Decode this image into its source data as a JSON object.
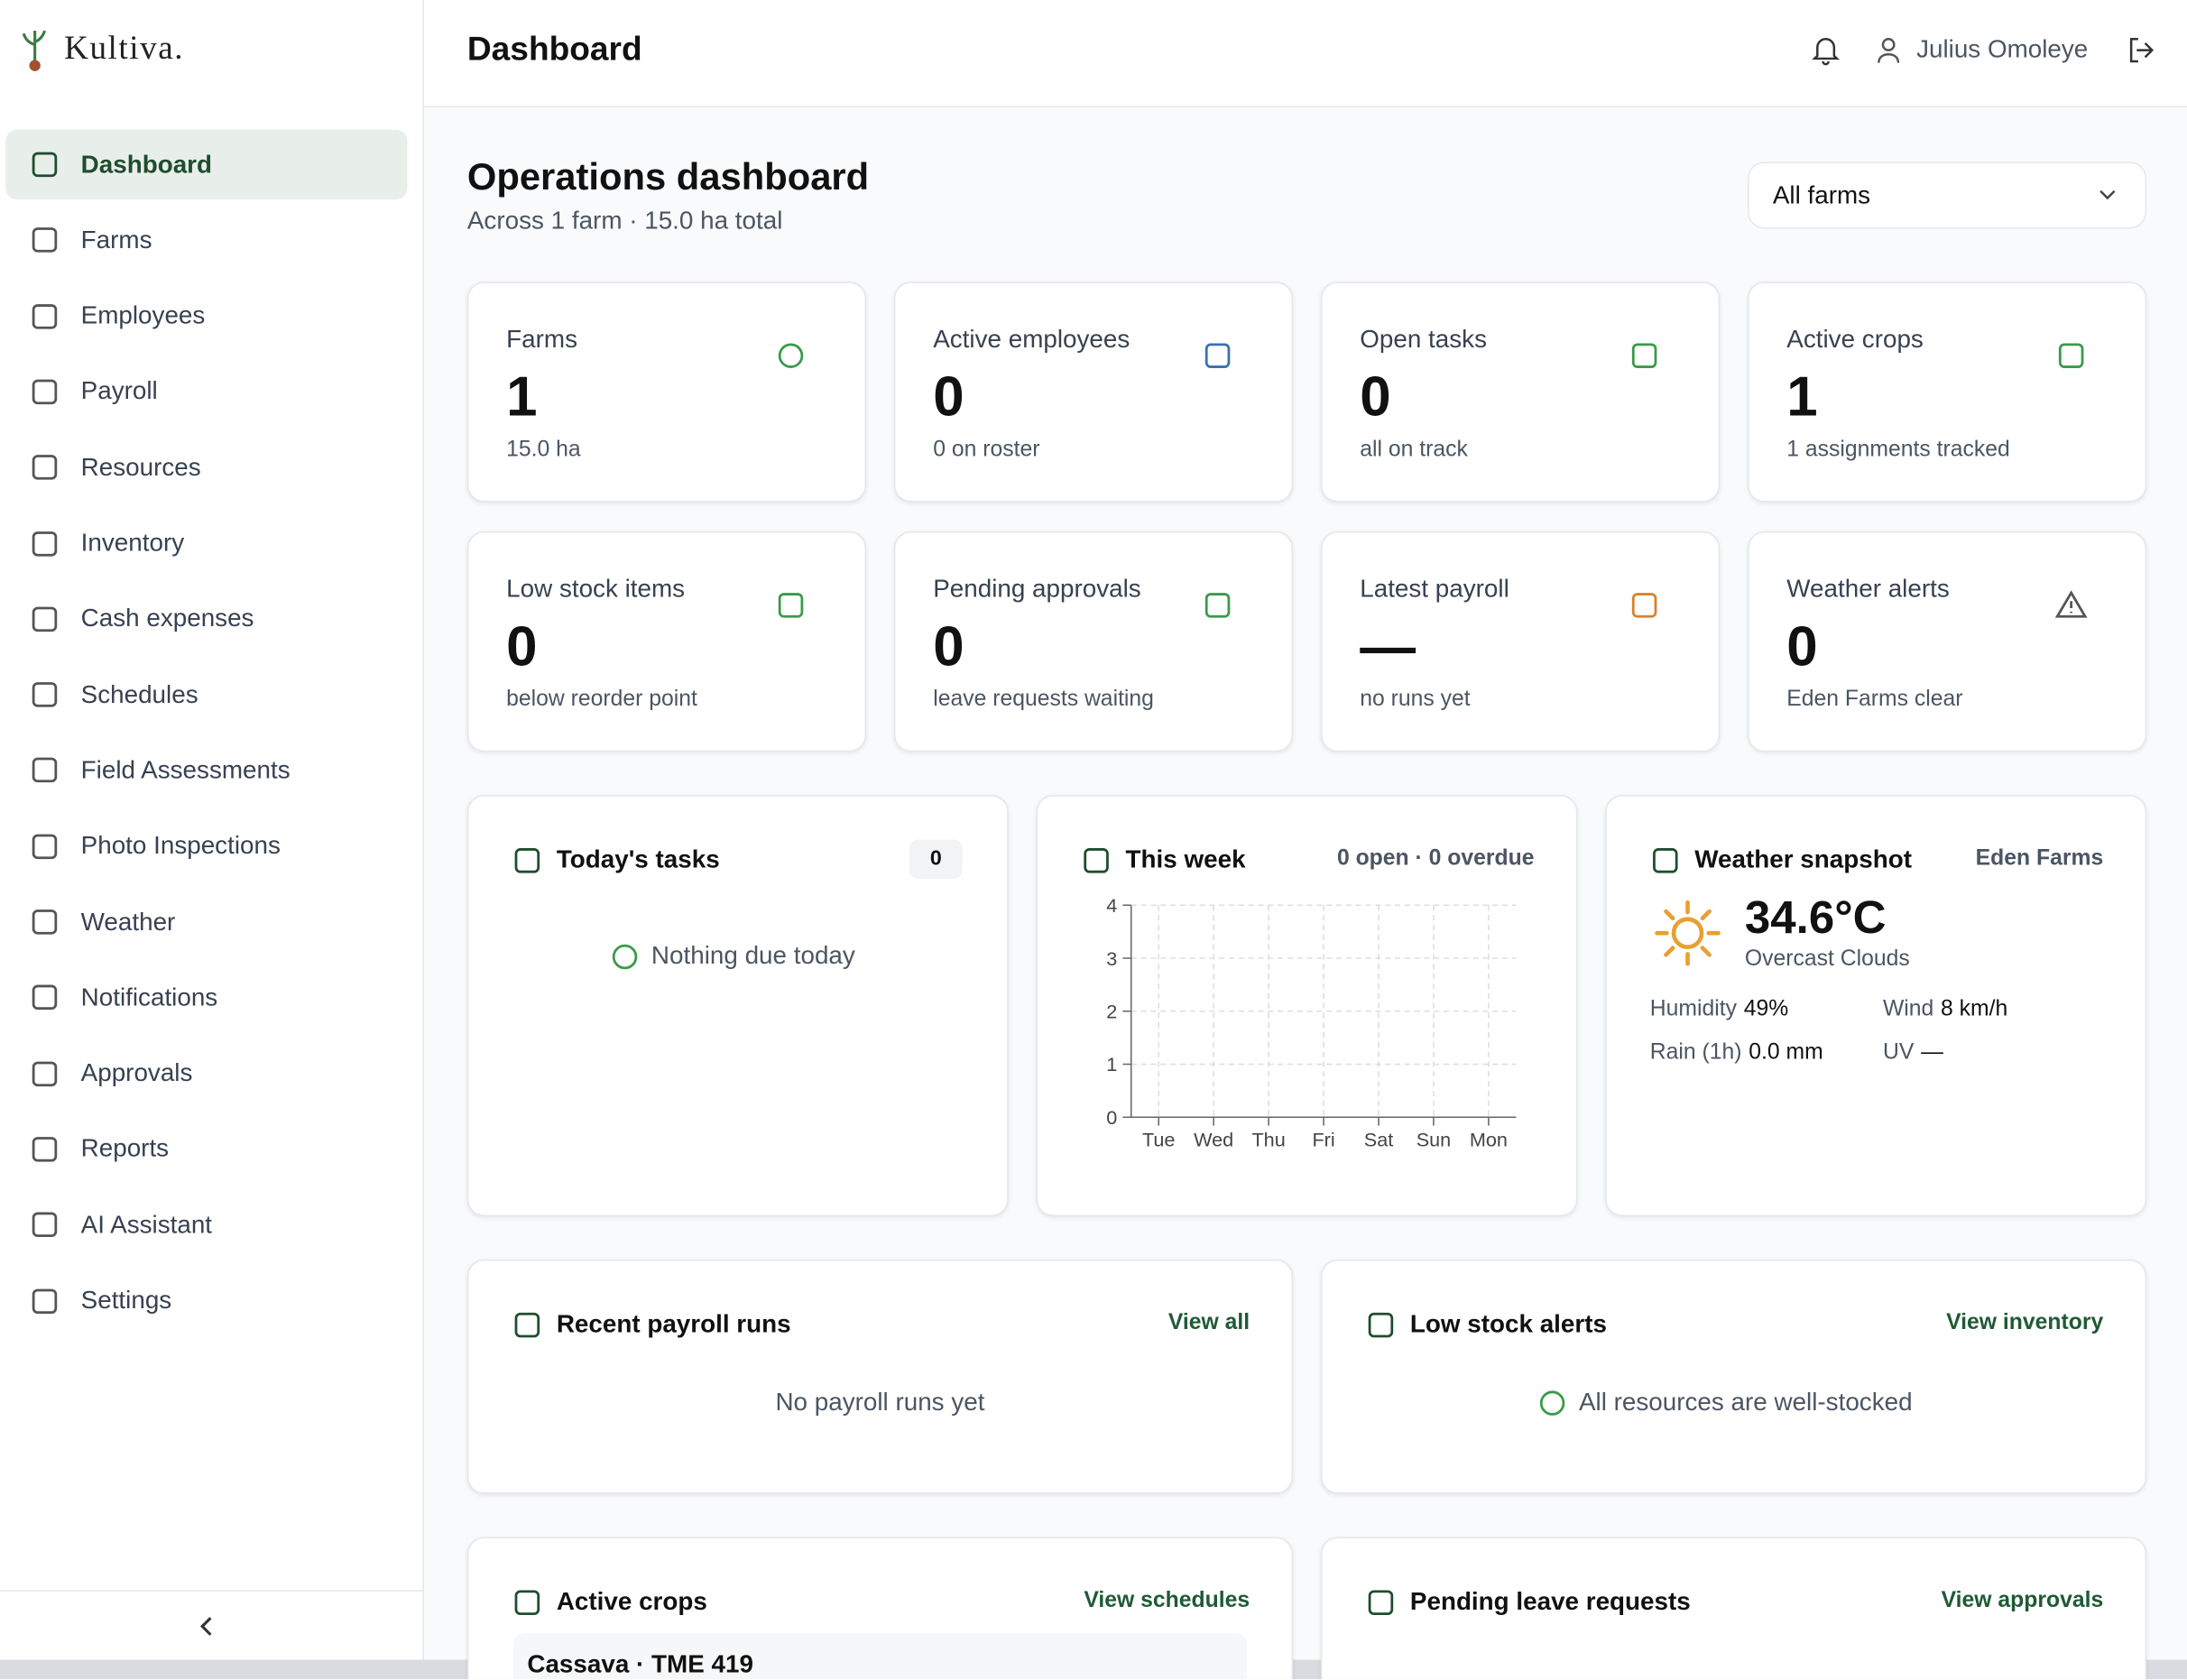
{
  "brand": "Kultiva.",
  "header": {
    "title": "Dashboard",
    "user": "Julius Omoleye"
  },
  "nav": [
    "Dashboard",
    "Farms",
    "Employees",
    "Payroll",
    "Resources",
    "Inventory",
    "Cash expenses",
    "Schedules",
    "Field Assessments",
    "Photo Inspections",
    "Weather",
    "Notifications",
    "Approvals",
    "Reports",
    "AI Assistant",
    "Settings"
  ],
  "page": {
    "title": "Operations dashboard",
    "subtitle": "Across 1 farm · 15.0 ha total",
    "farm_select": "All farms"
  },
  "stats": [
    {
      "label": "Farms",
      "value": 1,
      "note": "15.0 ha"
    },
    {
      "label": "Active employees",
      "value": 0,
      "note": "0 on roster"
    },
    {
      "label": "Open tasks",
      "value": 0,
      "note": "all on track"
    },
    {
      "label": "Active crops",
      "value": 1,
      "note": "1 assignments tracked"
    },
    {
      "label": "Low stock items",
      "value": 0,
      "note": "below reorder point"
    },
    {
      "label": "Pending approvals",
      "value": 0,
      "note": "leave requests waiting"
    },
    {
      "label": "Latest payroll",
      "value": "—",
      "note": "no runs yet"
    },
    {
      "label": "Weather alerts",
      "value": 0,
      "note": "Eden Farms clear"
    }
  ],
  "tasks": {
    "title": "Today's tasks",
    "count": 0,
    "empty": "Nothing due today"
  },
  "week": {
    "title": "This week",
    "summary": "0 open · 0 overdue"
  },
  "chart_data": {
    "type": "bar",
    "categories": [
      "Tue",
      "Wed",
      "Thu",
      "Fri",
      "Sat",
      "Sun",
      "Mon"
    ],
    "values": [
      0,
      0,
      0,
      0,
      0,
      0,
      0
    ],
    "color": "#3a9a4a",
    "ylim": [
      0,
      4
    ],
    "yticks": [
      0,
      1,
      2,
      3,
      4
    ],
    "grid": true
  },
  "weather": {
    "title": "Weather snapshot",
    "farm": "Eden Farms",
    "temp": "34.6°C",
    "condition": "Overcast Clouds",
    "details": [
      {
        "label": "Humidity",
        "value": "49%"
      },
      {
        "label": "Wind",
        "value": "8 km/h"
      },
      {
        "label": "Rain (1h)",
        "value": "0.0 mm"
      },
      {
        "label": "UV",
        "value": "—"
      }
    ]
  },
  "payroll": {
    "title": "Recent payroll runs",
    "link": "View all",
    "empty": "No payroll runs yet"
  },
  "low_stock": {
    "title": "Low stock alerts",
    "link": "View inventory",
    "empty": "All resources are well-stocked"
  },
  "crops": {
    "title": "Active crops",
    "link": "View schedules",
    "row": "Cassava · TME 419"
  },
  "leave": {
    "title": "Pending leave requests",
    "link": "View approvals"
  }
}
